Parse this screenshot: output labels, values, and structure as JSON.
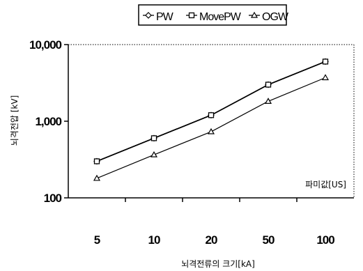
{
  "chart_data": {
    "type": "line",
    "categories": [
      "5",
      "10",
      "20",
      "50",
      "100"
    ],
    "series": [
      {
        "name": "PW",
        "values": [
          300,
          600,
          1200,
          3000,
          6000
        ],
        "marker": "diamond",
        "color": "#000000"
      },
      {
        "name": "MovePW",
        "values": [
          300,
          600,
          1200,
          3000,
          6000
        ],
        "marker": "square",
        "color": "#000000"
      },
      {
        "name": "OGW",
        "values": [
          180,
          365,
          730,
          1820,
          3700
        ],
        "marker": "triangle",
        "color": "#000000"
      }
    ],
    "xlabel": "뇌격전류의 크기[kA]",
    "ylabel": "뇌격전압 [kV]",
    "yscale": "log",
    "ylim": [
      100,
      10000
    ],
    "yticks": [
      {
        "value": 100,
        "label": "100"
      },
      {
        "value": 1000,
        "label": "1,000"
      },
      {
        "value": 10000,
        "label": "10,000"
      }
    ],
    "annotation": "파미값[US]",
    "legend_position": "top",
    "grid": false
  }
}
